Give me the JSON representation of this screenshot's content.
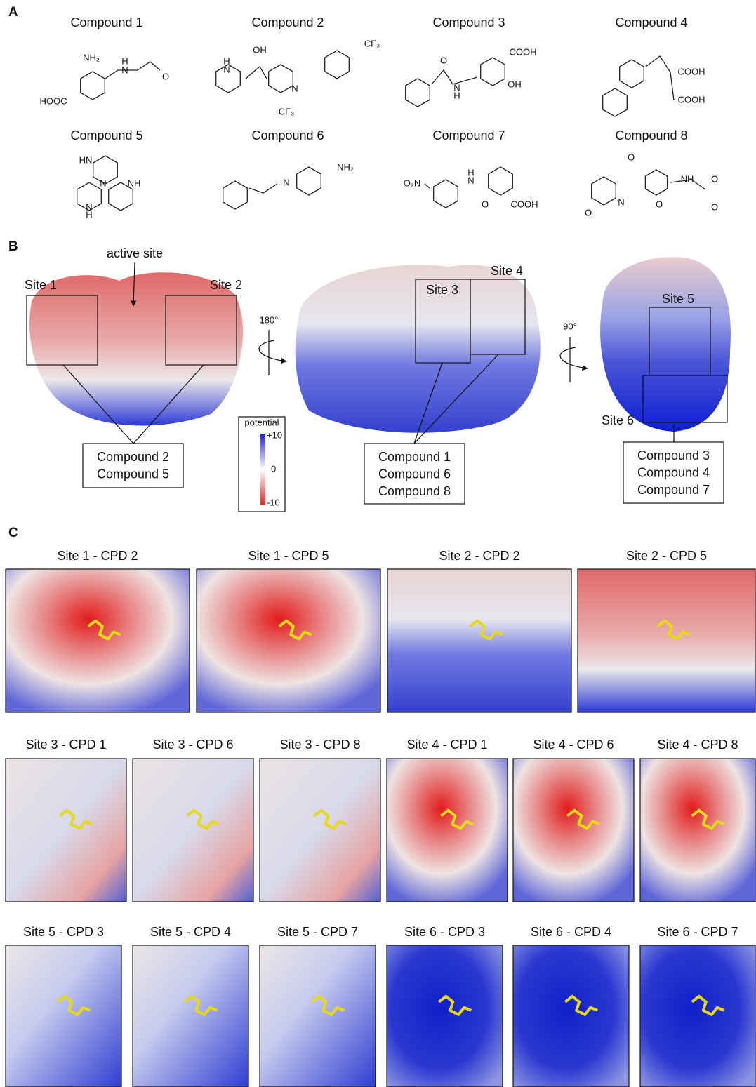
{
  "panels": {
    "a": "A",
    "b": "B",
    "c": "C"
  },
  "compounds": [
    {
      "name": "Compound 1",
      "atoms": [
        "NH₂",
        "H",
        "N",
        "O",
        "HOOC"
      ]
    },
    {
      "name": "Compound 2",
      "atoms": [
        "OH",
        "H",
        "N",
        "CF₃",
        "N",
        "CF₃"
      ]
    },
    {
      "name": "Compound 3",
      "atoms": [
        "O",
        "N",
        "H",
        "COOH",
        "OH"
      ]
    },
    {
      "name": "Compound 4",
      "atoms": [
        "COOH",
        "COOH"
      ]
    },
    {
      "name": "Compound 5",
      "atoms": [
        "HN",
        "N",
        "NH",
        "N",
        "H"
      ]
    },
    {
      "name": "Compound 6",
      "atoms": [
        "N",
        "NH₂"
      ]
    },
    {
      "name": "Compound 7",
      "atoms": [
        "O₂N",
        "H",
        "N",
        "O",
        "COOH"
      ]
    },
    {
      "name": "Compound 8",
      "atoms": [
        "O",
        "N",
        "O",
        "NH",
        "O",
        "O",
        "O"
      ]
    }
  ],
  "panel_b": {
    "active_site": "active site",
    "sites": [
      "Site 1",
      "Site 2",
      "Site 3",
      "Site 4",
      "Site 5",
      "Site 6"
    ],
    "rotations": [
      "180°",
      "90°"
    ],
    "groups": [
      [
        "Compound 2",
        "Compound 5"
      ],
      [
        "Compound 1",
        "Compound 6",
        "Compound 8"
      ],
      [
        "Compound 3",
        "Compound 4",
        "Compound 7"
      ]
    ],
    "legend": {
      "title": "potential",
      "max": "+10",
      "mid": "0",
      "min": "-10"
    }
  },
  "panel_c": {
    "rows": [
      [
        "Site 1 - CPD 2",
        "Site 1 - CPD 5",
        "Site 2 - CPD 2",
        "Site 2 - CPD 5"
      ],
      [
        "Site 3 - CPD 1",
        "Site 3 - CPD 6",
        "Site 3 - CPD 8",
        "Site 4 - CPD 1",
        "Site 4 - CPD 6",
        "Site 4 - CPD 8"
      ],
      [
        "Site 5 - CPD 3",
        "Site 5 - CPD 4",
        "Site 5 - CPD 7",
        "Site 6 - CPD 3",
        "Site 6 - CPD 4",
        "Site 6 - CPD 7"
      ]
    ]
  }
}
